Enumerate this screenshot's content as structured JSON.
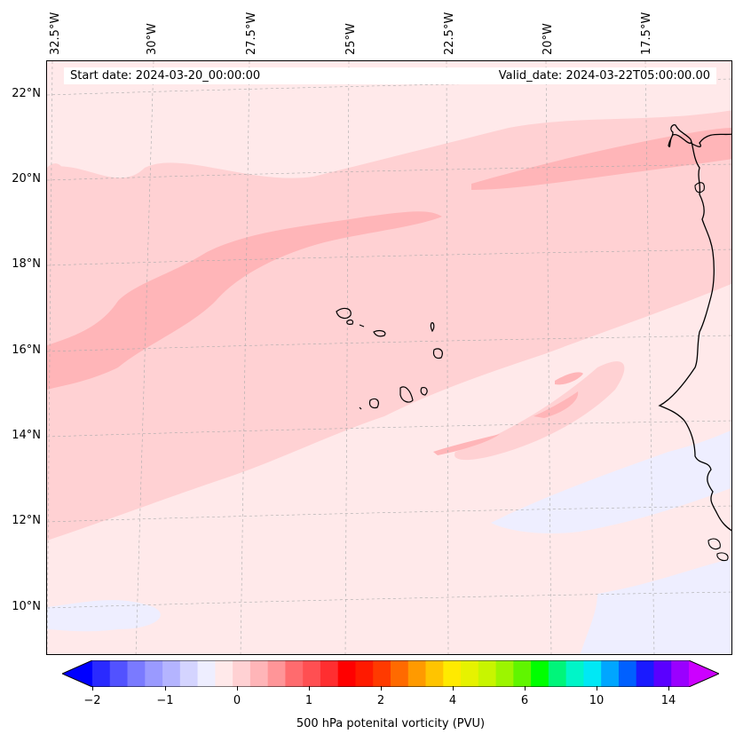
{
  "map": {
    "title_left": "Start date: 2024-03-20_00:00:00",
    "title_right": "Valid_date: 2024-03-22T05:00:00.00",
    "lon_labels": [
      "32.5°W",
      "30°W",
      "27.5°W",
      "25°W",
      "22.5°W",
      "20°W",
      "17.5°W"
    ],
    "lat_labels": [
      "22°N",
      "20°N",
      "18°N",
      "16°N",
      "14°N",
      "12°N",
      "10°N"
    ],
    "field": "500 hPa potential vorticity",
    "colors": {
      "background": "#ffe9ea",
      "light_band": "#ffd1d3",
      "mid_band": "#ffb5b8",
      "negative": "#eeeeff",
      "coast": "#000000"
    }
  },
  "colorbar": {
    "label": "500 hPa potenital vorticity (PVU)",
    "tick_labels": [
      "−2",
      "−1",
      "0",
      "1",
      "2",
      "4",
      "6",
      "10",
      "14"
    ],
    "colors": [
      "#0000ff",
      "#2a2aff",
      "#5252ff",
      "#7a7aff",
      "#9a9aff",
      "#b4b4ff",
      "#d4d4ff",
      "#eeeeff",
      "#ffe9ea",
      "#ffd1d3",
      "#ffb5b8",
      "#ff9598",
      "#ff6b6e",
      "#ff4f52",
      "#ff2e30",
      "#ff0000",
      "#ff1a00",
      "#ff3a00",
      "#ff6a00",
      "#ff9a00",
      "#ffc400",
      "#ffea00",
      "#e6f200",
      "#c8f500",
      "#9cf500",
      "#60f500",
      "#00ff00",
      "#00f57a",
      "#00f5c8",
      "#00e8f5",
      "#00a6ff",
      "#0060ff",
      "#1a1aff",
      "#5a00ff",
      "#9a00ff",
      "#cc00ff"
    ]
  }
}
